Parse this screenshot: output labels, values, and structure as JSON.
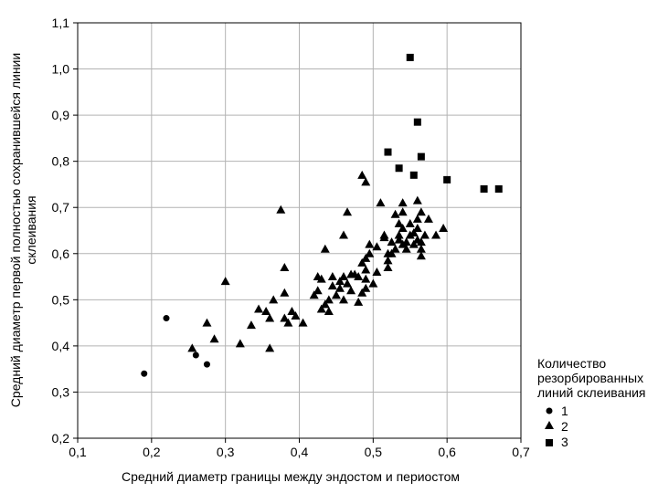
{
  "chart_data": {
    "type": "scatter",
    "title": "",
    "xlabel": "Средний диаметр границы между эндостом и периостом",
    "ylabel_line1": "Средний диаметр первой полностью сохранившейся линии",
    "ylabel_line2": "склеивания",
    "xlim": [
      0.1,
      0.7
    ],
    "ylim": [
      0.2,
      1.1
    ],
    "xticks": [
      "0,1",
      "0,2",
      "0,3",
      "0,4",
      "0,5",
      "0,6",
      "0,7"
    ],
    "yticks": [
      "0,2",
      "0,3",
      "0,4",
      "0,5",
      "0,6",
      "0,7",
      "0,8",
      "0,9",
      "1,0",
      "1,1"
    ],
    "grid": true,
    "legend": {
      "position": "right",
      "title_lines": [
        "Количество",
        "резорбированных",
        "линий склеивания"
      ]
    },
    "series": [
      {
        "name": "1",
        "marker": "circle",
        "points": [
          [
            0.19,
            0.34
          ],
          [
            0.22,
            0.46
          ],
          [
            0.26,
            0.38
          ],
          [
            0.275,
            0.36
          ]
        ]
      },
      {
        "name": "2",
        "marker": "triangle",
        "points": [
          [
            0.255,
            0.395
          ],
          [
            0.275,
            0.45
          ],
          [
            0.285,
            0.415
          ],
          [
            0.3,
            0.54
          ],
          [
            0.32,
            0.405
          ],
          [
            0.335,
            0.445
          ],
          [
            0.345,
            0.48
          ],
          [
            0.355,
            0.475
          ],
          [
            0.36,
            0.395
          ],
          [
            0.36,
            0.46
          ],
          [
            0.365,
            0.5
          ],
          [
            0.375,
            0.695
          ],
          [
            0.38,
            0.57
          ],
          [
            0.38,
            0.515
          ],
          [
            0.38,
            0.46
          ],
          [
            0.385,
            0.45
          ],
          [
            0.39,
            0.475
          ],
          [
            0.395,
            0.465
          ],
          [
            0.405,
            0.45
          ],
          [
            0.42,
            0.51
          ],
          [
            0.425,
            0.52
          ],
          [
            0.425,
            0.55
          ],
          [
            0.43,
            0.545
          ],
          [
            0.43,
            0.48
          ],
          [
            0.435,
            0.61
          ],
          [
            0.435,
            0.49
          ],
          [
            0.44,
            0.475
          ],
          [
            0.44,
            0.5
          ],
          [
            0.445,
            0.53
          ],
          [
            0.445,
            0.55
          ],
          [
            0.45,
            0.51
          ],
          [
            0.455,
            0.54
          ],
          [
            0.455,
            0.525
          ],
          [
            0.46,
            0.64
          ],
          [
            0.46,
            0.55
          ],
          [
            0.46,
            0.5
          ],
          [
            0.465,
            0.69
          ],
          [
            0.465,
            0.535
          ],
          [
            0.47,
            0.52
          ],
          [
            0.47,
            0.555
          ],
          [
            0.475,
            0.555
          ],
          [
            0.48,
            0.55
          ],
          [
            0.48,
            0.495
          ],
          [
            0.485,
            0.515
          ],
          [
            0.485,
            0.58
          ],
          [
            0.485,
            0.77
          ],
          [
            0.49,
            0.755
          ],
          [
            0.49,
            0.525
          ],
          [
            0.49,
            0.565
          ],
          [
            0.49,
            0.59
          ],
          [
            0.49,
            0.545
          ],
          [
            0.495,
            0.6
          ],
          [
            0.495,
            0.62
          ],
          [
            0.5,
            0.535
          ],
          [
            0.505,
            0.56
          ],
          [
            0.505,
            0.615
          ],
          [
            0.51,
            0.71
          ],
          [
            0.515,
            0.64
          ],
          [
            0.515,
            0.635
          ],
          [
            0.52,
            0.6
          ],
          [
            0.52,
            0.585
          ],
          [
            0.52,
            0.57
          ],
          [
            0.525,
            0.625
          ],
          [
            0.525,
            0.6
          ],
          [
            0.53,
            0.61
          ],
          [
            0.53,
            0.685
          ],
          [
            0.535,
            0.64
          ],
          [
            0.535,
            0.665
          ],
          [
            0.535,
            0.63
          ],
          [
            0.54,
            0.655
          ],
          [
            0.54,
            0.62
          ],
          [
            0.54,
            0.69
          ],
          [
            0.54,
            0.71
          ],
          [
            0.545,
            0.625
          ],
          [
            0.545,
            0.61
          ],
          [
            0.55,
            0.64
          ],
          [
            0.55,
            0.665
          ],
          [
            0.555,
            0.62
          ],
          [
            0.555,
            0.645
          ],
          [
            0.56,
            0.675
          ],
          [
            0.56,
            0.715
          ],
          [
            0.56,
            0.655
          ],
          [
            0.56,
            0.63
          ],
          [
            0.565,
            0.61
          ],
          [
            0.565,
            0.69
          ],
          [
            0.565,
            0.625
          ],
          [
            0.565,
            0.595
          ],
          [
            0.57,
            0.64
          ],
          [
            0.575,
            0.675
          ],
          [
            0.585,
            0.64
          ],
          [
            0.595,
            0.655
          ]
        ]
      },
      {
        "name": "3",
        "marker": "square",
        "points": [
          [
            0.52,
            0.82
          ],
          [
            0.535,
            0.785
          ],
          [
            0.55,
            1.025
          ],
          [
            0.555,
            0.77
          ],
          [
            0.56,
            0.885
          ],
          [
            0.565,
            0.81
          ],
          [
            0.6,
            0.76
          ],
          [
            0.65,
            0.74
          ],
          [
            0.67,
            0.74
          ]
        ]
      }
    ]
  }
}
